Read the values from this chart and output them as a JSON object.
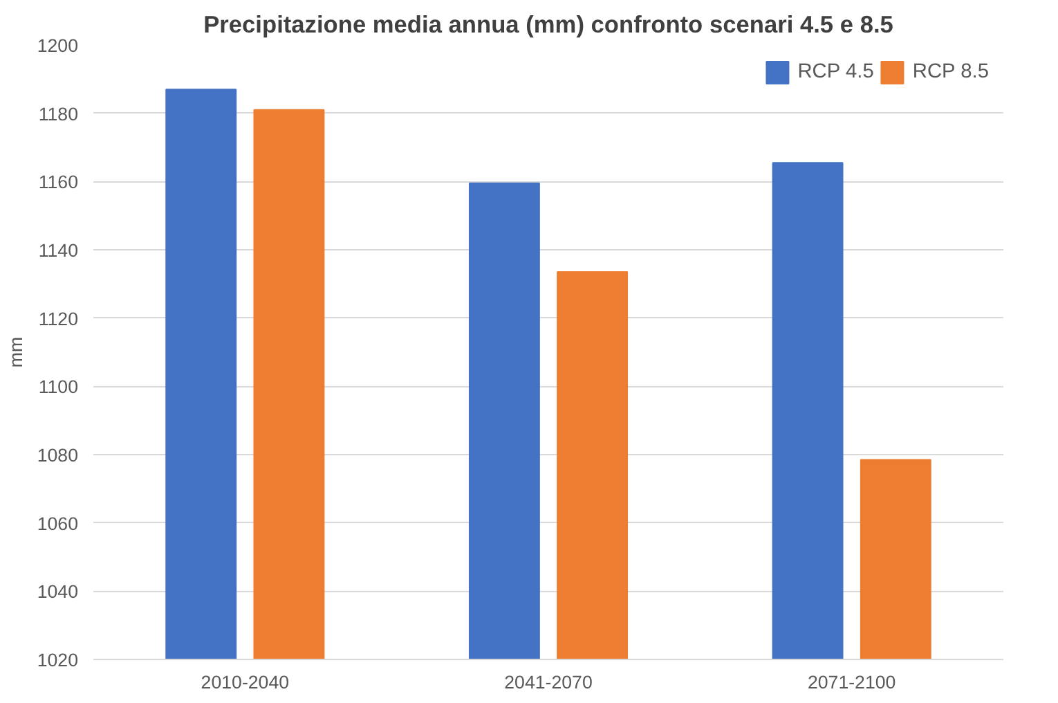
{
  "chart_data": {
    "type": "bar",
    "title": "Precipitazione media annua (mm) confronto scenari 4.5 e 8.5",
    "ylabel": "mm",
    "categories": [
      "2010-2040",
      "2041-2070",
      "2071-2100"
    ],
    "series": [
      {
        "name": "RCP 4.5",
        "color": "#4472c4",
        "values": [
          1187,
          1159.5,
          1165.5
        ]
      },
      {
        "name": "RCP 8.5",
        "color": "#ed7d31",
        "values": [
          1181,
          1133.5,
          1078.5
        ]
      }
    ],
    "ylim": [
      1020,
      1200
    ],
    "yticks": [
      1020,
      1040,
      1060,
      1080,
      1100,
      1120,
      1140,
      1160,
      1180,
      1200
    ],
    "grid": "y",
    "legend": "top right"
  }
}
